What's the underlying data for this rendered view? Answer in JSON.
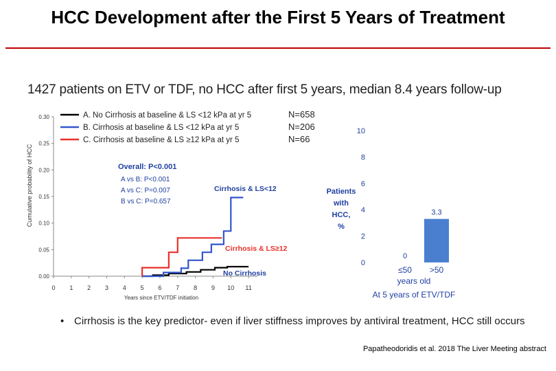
{
  "title": "HCC Development after the First 5 Years of Treatment",
  "subtitle": "1427 patients on ETV or TDF, no HCC after first 5 years, median 8.4 years follow-up",
  "bullet": "Cirrhosis is the key predictor- even if  liver stiffness improves by antiviral treatment, HCC still occurs",
  "citation": "Papatheodoridis et al. 2018 The Liver Meeting abstract",
  "colors": {
    "title_rule": "#c00000",
    "series_a": "#000000",
    "series_b": "#3355cc",
    "series_c": "#e8302a",
    "bar": "#4a7fcf",
    "annotation": "#1f3f9f"
  },
  "chart_data": [
    {
      "type": "line",
      "ylabel": "Cumulative probability of HCC",
      "xlabel": "Years since ETV/TDF initiation",
      "xlim": [
        0,
        11.5
      ],
      "ylim": [
        0,
        0.3
      ],
      "xticks": [
        "0",
        "1",
        "2",
        "3",
        "4",
        "5",
        "6",
        "7",
        "8",
        "9",
        "10",
        "11"
      ],
      "yticks": [
        "0.00",
        "0.05",
        "0.10",
        "0.15",
        "0.20",
        "0.25",
        "0.30"
      ],
      "series": [
        {
          "name": "A. No Cirrhosis at baseline & LS <12 kPa at yr 5",
          "n_label": "N=658",
          "color": "#000000",
          "points": [
            [
              5,
              0
            ],
            [
              5.6,
              0
            ],
            [
              5.6,
              0.002
            ],
            [
              6.5,
              0.002
            ],
            [
              6.5,
              0.005
            ],
            [
              7.5,
              0.005
            ],
            [
              7.5,
              0.008
            ],
            [
              8.3,
              0.008
            ],
            [
              8.3,
              0.012
            ],
            [
              9.1,
              0.012
            ],
            [
              9.1,
              0.016
            ],
            [
              9.8,
              0.016
            ],
            [
              9.8,
              0.018
            ],
            [
              11,
              0.018
            ]
          ]
        },
        {
          "name": "B. Cirrhosis at baseline & LS <12 kPa at yr 5",
          "n_label": "N=206",
          "color": "#3355cc",
          "points": [
            [
              5,
              0
            ],
            [
              6.2,
              0
            ],
            [
              6.2,
              0.007
            ],
            [
              7.2,
              0.007
            ],
            [
              7.2,
              0.015
            ],
            [
              7.6,
              0.015
            ],
            [
              7.6,
              0.03
            ],
            [
              8.4,
              0.03
            ],
            [
              8.4,
              0.045
            ],
            [
              8.9,
              0.045
            ],
            [
              8.9,
              0.06
            ],
            [
              9.6,
              0.06
            ],
            [
              9.6,
              0.085
            ],
            [
              10,
              0.085
            ],
            [
              10,
              0.148
            ],
            [
              10.7,
              0.148
            ]
          ]
        },
        {
          "name": "C. Cirrhosis at baseline & LS ≥12 kPa at yr 5",
          "n_label": "N=66",
          "color": "#e8302a",
          "points": [
            [
              5,
              0
            ],
            [
              5,
              0.016
            ],
            [
              6.5,
              0.016
            ],
            [
              6.5,
              0.045
            ],
            [
              7,
              0.045
            ],
            [
              7,
              0.072
            ],
            [
              9.5,
              0.072
            ],
            [
              9.5,
              0.072
            ]
          ]
        }
      ],
      "annotations": {
        "overall": "Overall: P<0.001",
        "pairs": [
          "A vs B: P<0.001",
          "A vs C: P=0.007",
          "B vs C: P=0.657"
        ],
        "labels": [
          {
            "text": "Cirrhosis & LS<12",
            "color": "#1f3f9f"
          },
          {
            "text": "Cirrhosis & LS≥12",
            "color": "#e8302a"
          },
          {
            "text": "No Cirrhosis",
            "color": "#1f3f9f"
          }
        ]
      }
    },
    {
      "type": "bar",
      "categories": [
        "≤50",
        ">50"
      ],
      "values": [
        0,
        3.3
      ],
      "value_labels": [
        "0",
        "3.3"
      ],
      "ylim": [
        0,
        10
      ],
      "yticks": [
        "0",
        "2",
        "4",
        "6",
        "8",
        "10"
      ],
      "ylabel_lines": [
        "Patients",
        "with",
        "HCC,",
        "%"
      ],
      "xlabel": "years old",
      "footer": "At 5 years of ETV/TDF"
    }
  ]
}
